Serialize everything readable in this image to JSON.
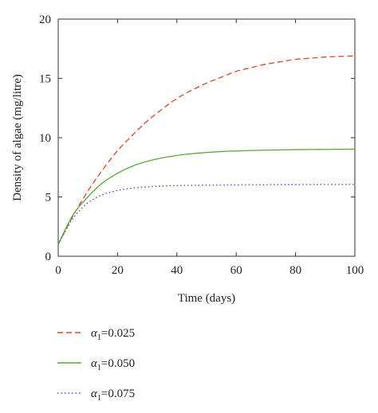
{
  "chart_data": {
    "type": "line",
    "title": "",
    "xlabel": "Time (days)",
    "ylabel": "Density of algae (mg/litre)",
    "xlim": [
      0,
      100
    ],
    "ylim": [
      0,
      20
    ],
    "xticks": [
      0,
      20,
      40,
      60,
      80,
      100
    ],
    "yticks": [
      0,
      5,
      10,
      15,
      20
    ],
    "grid": false,
    "legend_position": "bottom",
    "x": [
      0,
      5,
      10,
      15,
      20,
      25,
      30,
      35,
      40,
      45,
      50,
      55,
      60,
      65,
      70,
      75,
      80,
      85,
      90,
      95,
      100
    ],
    "series": [
      {
        "name": "α1=0.025",
        "label_prefix": "α",
        "label_sub": "1",
        "label_suffix": "=0.025",
        "color": "#d9482b",
        "dash": "dashed",
        "values": [
          1.0,
          3.4,
          5.5,
          7.3,
          8.9,
          10.2,
          11.4,
          12.4,
          13.3,
          14.0,
          14.6,
          15.1,
          15.6,
          15.9,
          16.2,
          16.4,
          16.6,
          16.7,
          16.8,
          16.85,
          16.9
        ]
      },
      {
        "name": "α1=0.050",
        "label_prefix": "α",
        "label_sub": "1",
        "label_suffix": "=0.050",
        "color": "#5aa83a",
        "dash": "solid",
        "values": [
          1.0,
          3.5,
          5.0,
          6.2,
          7.0,
          7.6,
          8.0,
          8.3,
          8.5,
          8.65,
          8.75,
          8.83,
          8.88,
          8.92,
          8.95,
          8.97,
          8.99,
          9.0,
          9.01,
          9.02,
          9.03
        ]
      },
      {
        "name": "α1=0.075",
        "label_prefix": "α",
        "label_sub": "1",
        "label_suffix": "=0.075",
        "color": "#5050c0",
        "dash": "dotted",
        "values": [
          1.0,
          3.2,
          4.5,
          5.2,
          5.55,
          5.75,
          5.85,
          5.92,
          5.96,
          5.98,
          6.0,
          6.01,
          6.02,
          6.03,
          6.03,
          6.04,
          6.04,
          6.05,
          6.05,
          6.05,
          6.05
        ]
      }
    ]
  }
}
